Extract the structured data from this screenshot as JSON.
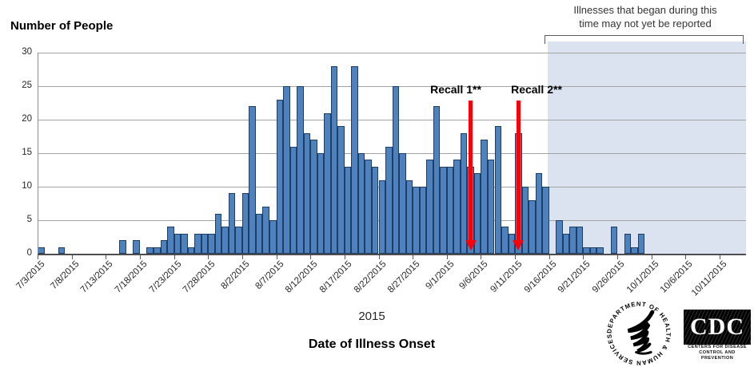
{
  "chart_data": {
    "type": "bar",
    "title": "",
    "ylabel": "Number of People",
    "xlabel": "Date of Illness Onset",
    "year_label": "2015",
    "ylim": [
      0,
      30
    ],
    "yticks": [
      0,
      5,
      10,
      15,
      20,
      25,
      30
    ],
    "grid": true,
    "x_tick_labels": [
      "7/3/2015",
      "7/8/2015",
      "7/13/2015",
      "7/18/2015",
      "7/23/2015",
      "7/28/2015",
      "8/2/2015",
      "8/7/2015",
      "8/12/2015",
      "8/17/2015",
      "8/22/2015",
      "8/27/2015",
      "9/1/2015",
      "9/6/2015",
      "9/11/2015",
      "9/16/2015",
      "9/21/2015",
      "9/26/2015",
      "10/1/2015",
      "10/6/2015",
      "10/11/2015"
    ],
    "daily_counts": [
      {
        "date": "7/3/2015",
        "value": 1
      },
      {
        "date": "7/6/2015",
        "value": 1
      },
      {
        "date": "7/15/2015",
        "value": 2
      },
      {
        "date": "7/17/2015",
        "value": 2
      },
      {
        "date": "7/19/2015",
        "value": 1
      },
      {
        "date": "7/20/2015",
        "value": 1
      },
      {
        "date": "7/21/2015",
        "value": 2
      },
      {
        "date": "7/22/2015",
        "value": 4
      },
      {
        "date": "7/23/2015",
        "value": 3
      },
      {
        "date": "7/24/2015",
        "value": 3
      },
      {
        "date": "7/25/2015",
        "value": 1
      },
      {
        "date": "7/26/2015",
        "value": 3
      },
      {
        "date": "7/27/2015",
        "value": 3
      },
      {
        "date": "7/28/2015",
        "value": 3
      },
      {
        "date": "7/29/2015",
        "value": 6
      },
      {
        "date": "7/30/2015",
        "value": 4
      },
      {
        "date": "7/31/2015",
        "value": 9
      },
      {
        "date": "8/1/2015",
        "value": 4
      },
      {
        "date": "8/2/2015",
        "value": 9
      },
      {
        "date": "8/3/2015",
        "value": 22
      },
      {
        "date": "8/4/2015",
        "value": 6
      },
      {
        "date": "8/5/2015",
        "value": 7
      },
      {
        "date": "8/6/2015",
        "value": 5
      },
      {
        "date": "8/7/2015",
        "value": 23
      },
      {
        "date": "8/8/2015",
        "value": 25
      },
      {
        "date": "8/9/2015",
        "value": 16
      },
      {
        "date": "8/10/2015",
        "value": 25
      },
      {
        "date": "8/11/2015",
        "value": 18
      },
      {
        "date": "8/12/2015",
        "value": 17
      },
      {
        "date": "8/13/2015",
        "value": 15
      },
      {
        "date": "8/14/2015",
        "value": 21
      },
      {
        "date": "8/15/2015",
        "value": 28
      },
      {
        "date": "8/16/2015",
        "value": 19
      },
      {
        "date": "8/17/2015",
        "value": 13
      },
      {
        "date": "8/18/2015",
        "value": 28
      },
      {
        "date": "8/19/2015",
        "value": 15
      },
      {
        "date": "8/20/2015",
        "value": 14
      },
      {
        "date": "8/21/2015",
        "value": 13
      },
      {
        "date": "8/22/2015",
        "value": 11
      },
      {
        "date": "8/23/2015",
        "value": 16
      },
      {
        "date": "8/24/2015",
        "value": 25
      },
      {
        "date": "8/25/2015",
        "value": 15
      },
      {
        "date": "8/26/2015",
        "value": 11
      },
      {
        "date": "8/27/2015",
        "value": 10
      },
      {
        "date": "8/28/2015",
        "value": 10
      },
      {
        "date": "8/29/2015",
        "value": 14
      },
      {
        "date": "8/30/2015",
        "value": 22
      },
      {
        "date": "8/31/2015",
        "value": 13
      },
      {
        "date": "9/1/2015",
        "value": 13
      },
      {
        "date": "9/2/2015",
        "value": 14
      },
      {
        "date": "9/3/2015",
        "value": 18
      },
      {
        "date": "9/4/2015",
        "value": 13
      },
      {
        "date": "9/5/2015",
        "value": 12
      },
      {
        "date": "9/6/2015",
        "value": 17
      },
      {
        "date": "9/7/2015",
        "value": 14
      },
      {
        "date": "9/8/2015",
        "value": 19
      },
      {
        "date": "9/9/2015",
        "value": 4
      },
      {
        "date": "9/10/2015",
        "value": 3
      },
      {
        "date": "9/11/2015",
        "value": 18
      },
      {
        "date": "9/12/2015",
        "value": 10
      },
      {
        "date": "9/13/2015",
        "value": 8
      },
      {
        "date": "9/14/2015",
        "value": 12
      },
      {
        "date": "9/15/2015",
        "value": 10
      },
      {
        "date": "9/17/2015",
        "value": 5
      },
      {
        "date": "9/18/2015",
        "value": 3
      },
      {
        "date": "9/19/2015",
        "value": 4
      },
      {
        "date": "9/20/2015",
        "value": 4
      },
      {
        "date": "9/21/2015",
        "value": 1
      },
      {
        "date": "9/22/2015",
        "value": 1
      },
      {
        "date": "9/23/2015",
        "value": 1
      },
      {
        "date": "9/25/2015",
        "value": 4
      },
      {
        "date": "9/27/2015",
        "value": 3
      },
      {
        "date": "9/28/2015",
        "value": 1
      },
      {
        "date": "9/29/2015",
        "value": 3
      }
    ],
    "annotations": {
      "recall_1": {
        "label": "Recall 1**",
        "date": "9/4/2015"
      },
      "recall_2": {
        "label": "Recall 2**",
        "date": "9/11/2015"
      },
      "unreported_note_line1": "Illnesses that began during this",
      "unreported_note_line2": "time may not yet be reported",
      "shaded_region_start_date": "9/16/2015"
    },
    "colors": {
      "bar_fill": "#4f81bd",
      "bar_border": "#1c3e67",
      "arrow_red": "#fb0007",
      "shade_fill": "#dbe3f1",
      "gridline": "#a3a3a3"
    }
  },
  "logos": {
    "hhs_ring_text": "DEPARTMENT OF HEALTH & HUMAN SERVICES • USA",
    "cdc_acronym": "CDC",
    "cdc_caption_line1": "CENTERS FOR DISEASE",
    "cdc_caption_line2": "CONTROL AND PREVENTION"
  }
}
